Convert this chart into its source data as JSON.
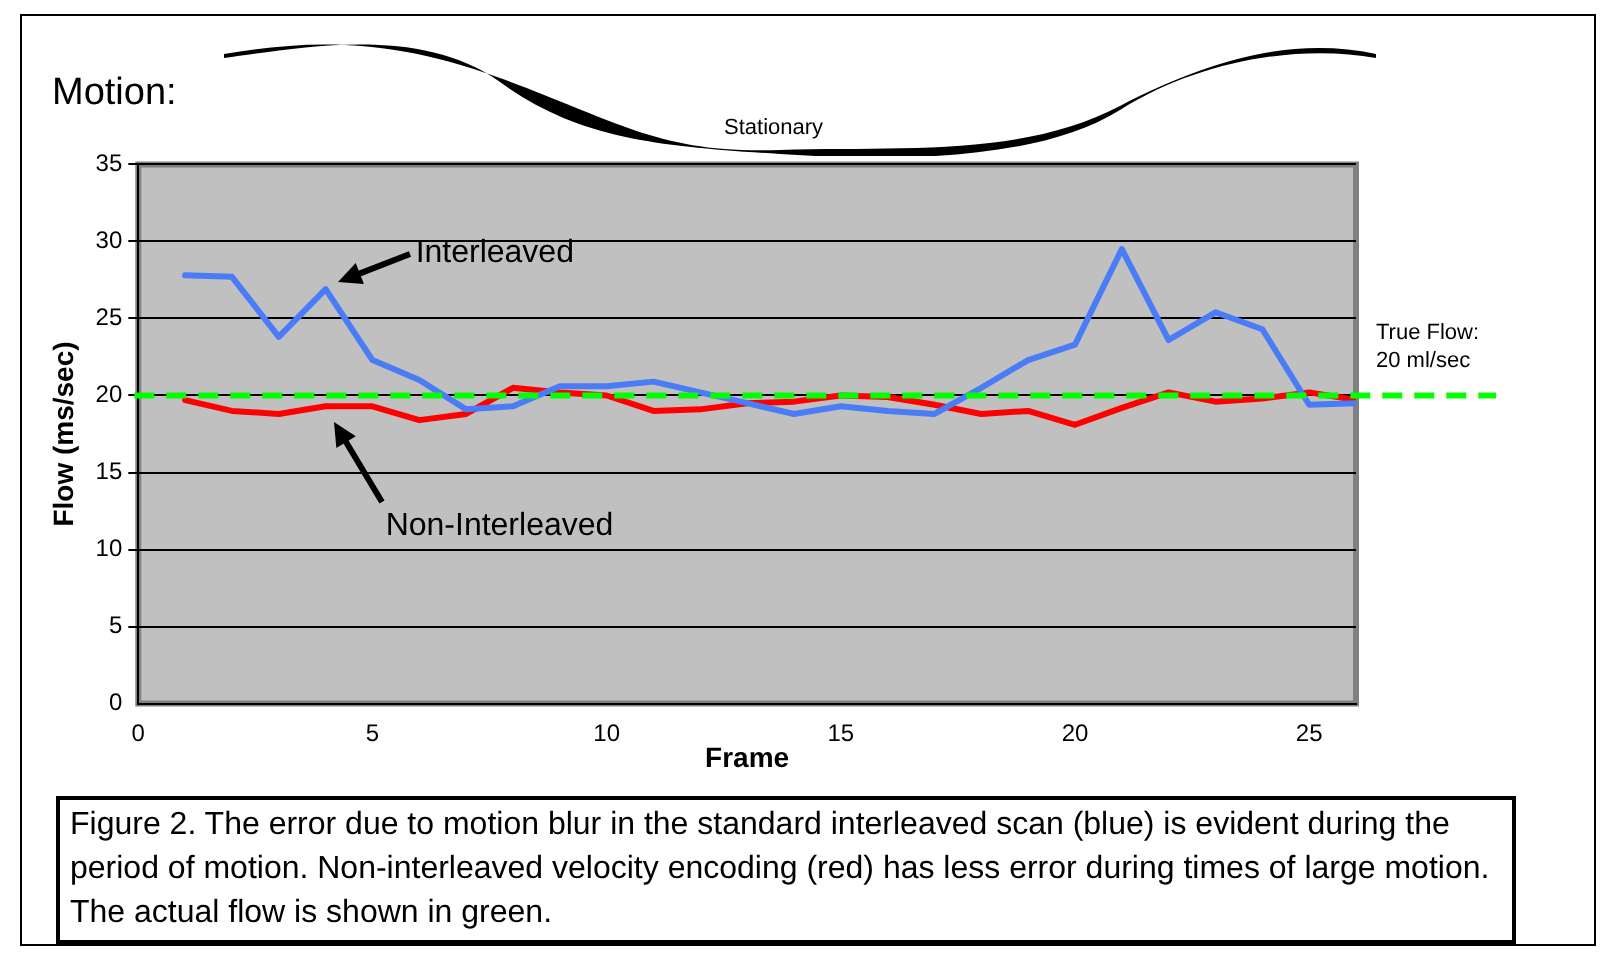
{
  "chart_data": {
    "type": "line",
    "xlabel": "Frame",
    "ylabel": "Flow (ms/sec)",
    "x": [
      1,
      2,
      3,
      4,
      5,
      6,
      7,
      8,
      9,
      10,
      11,
      12,
      13,
      14,
      15,
      16,
      17,
      18,
      19,
      20,
      21,
      22,
      23,
      24,
      25,
      26
    ],
    "series": [
      {
        "name": "Interleaved",
        "color": "#4a7cf7",
        "values": [
          27.8,
          27.7,
          23.8,
          26.9,
          22.3,
          21,
          19.1,
          19.3,
          20.6,
          20.6,
          20.9,
          20.2,
          19.5,
          18.8,
          19.3,
          19,
          18.8,
          20.5,
          22.3,
          23.3,
          29.5,
          23.6,
          25.4,
          24.3,
          19.4,
          19.5
        ]
      },
      {
        "name": "Non-Interleaved",
        "color": "#ff0000",
        "values": [
          19.7,
          19,
          18.8,
          19.3,
          19.3,
          18.4,
          18.8,
          20.5,
          20.2,
          20,
          19,
          19.1,
          19.5,
          19.6,
          20,
          19.9,
          19.4,
          18.8,
          19,
          18.1,
          19.2,
          20.2,
          19.6,
          19.8,
          20.2,
          19.7
        ]
      }
    ],
    "xlim": [
      0,
      26
    ],
    "xticks": [
      0,
      5,
      10,
      15,
      20,
      25
    ],
    "ylim": [
      0,
      35
    ],
    "yticks": [
      0,
      5,
      10,
      15,
      20,
      25,
      30,
      35
    ],
    "grid": "y",
    "legend": false,
    "marker": "none",
    "line_style": "solid",
    "ref_lines": [
      {
        "axis": "y",
        "value": 20,
        "label": "True Flow:\n20 ml/sec",
        "color": "#00ff00",
        "line_style": "dashed"
      }
    ],
    "annotations": [
      "Motion:",
      "Stationary",
      "Figure 2. The error due to motion blur in the standard interleaved scan (blue) is evident during the period of motion. Non-interleaved velocity encoding (red) has less error during times of large motion.  The actual flow is shown in green."
    ]
  }
}
